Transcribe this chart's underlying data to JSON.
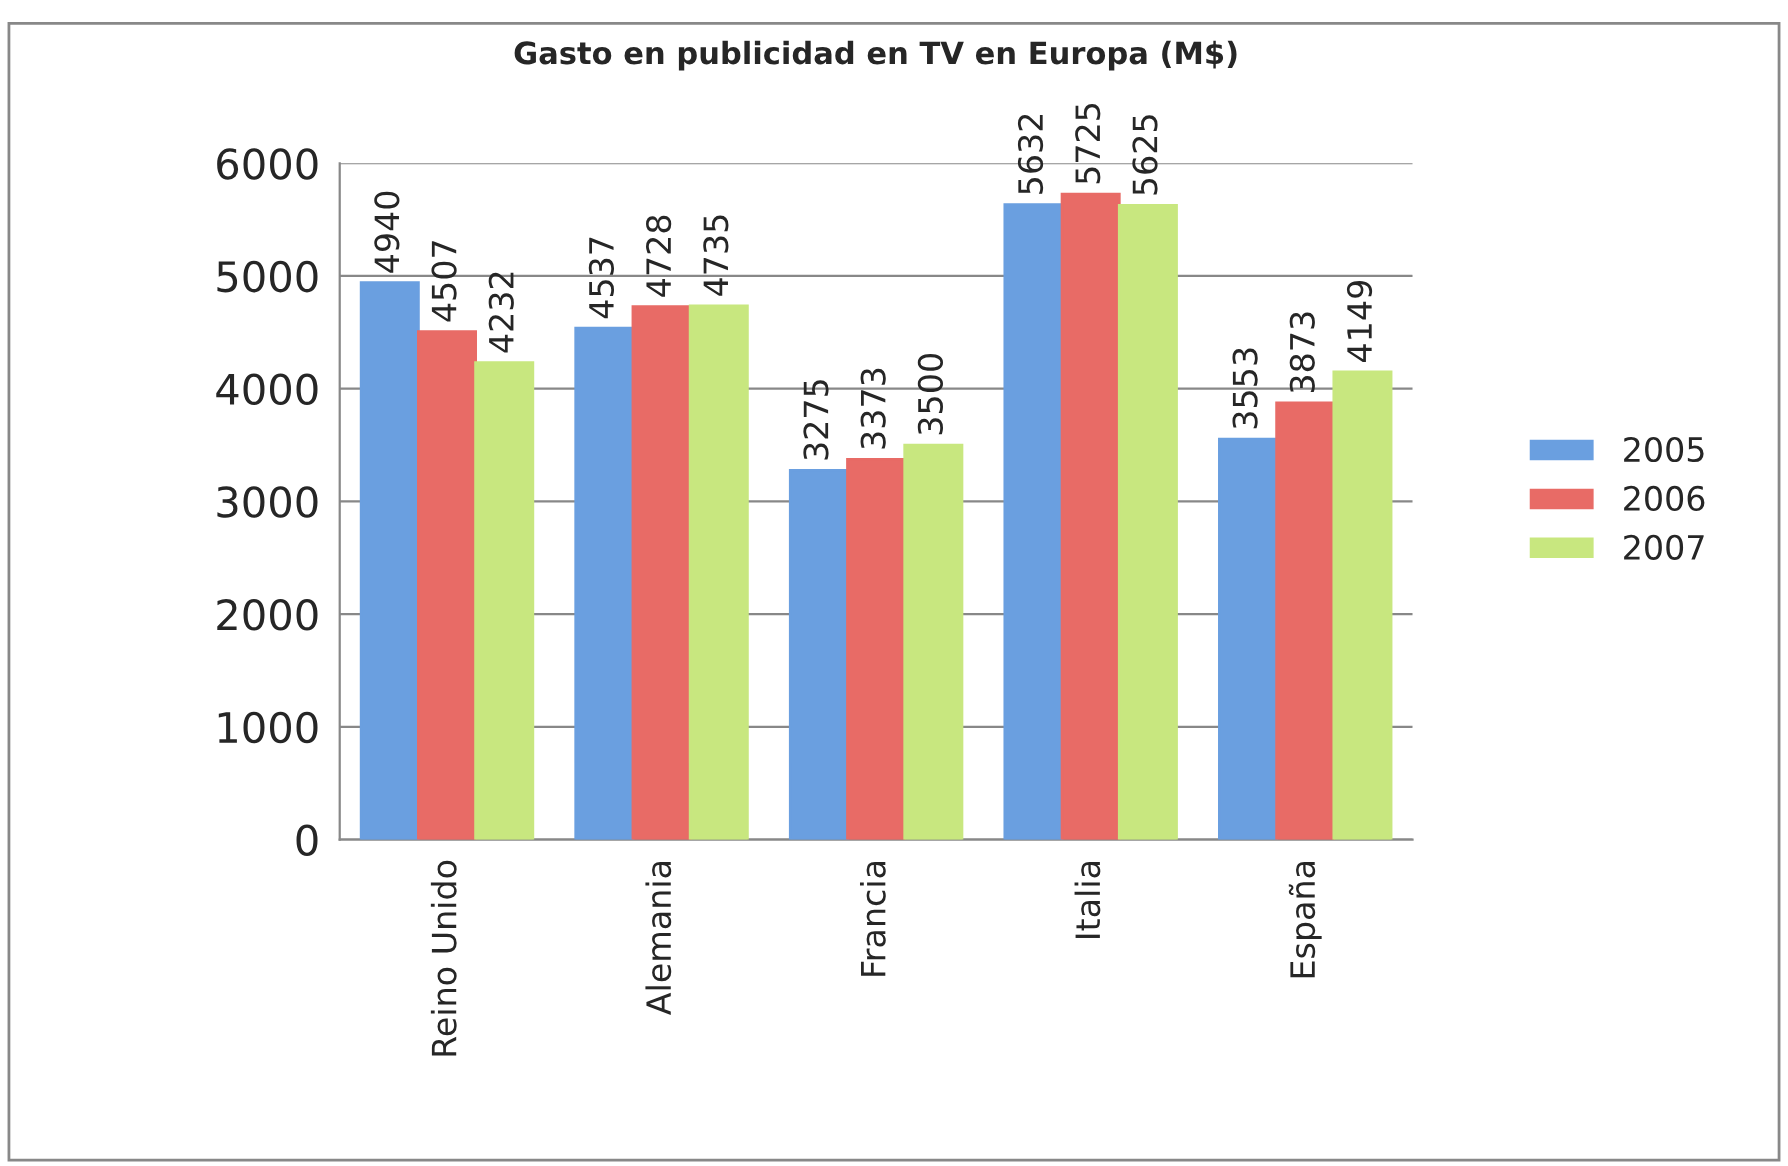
{
  "chart_data": {
    "type": "bar",
    "title": "Gasto en publicidad en TV en Europa (M$)",
    "categories": [
      "Reino Unido",
      "Alemania",
      "Francia",
      "Italia",
      "España"
    ],
    "series": [
      {
        "name": "2005",
        "color": "#6a9fe0",
        "values": [
          4940,
          4537,
          3275,
          5632,
          3553
        ]
      },
      {
        "name": "2006",
        "color": "#e86b66",
        "values": [
          4507,
          4728,
          3373,
          5725,
          3873
        ]
      },
      {
        "name": "2007",
        "color": "#c8e77f",
        "values": [
          4232,
          4735,
          3500,
          5625,
          4149
        ]
      }
    ],
    "ylim": [
      0,
      6000
    ],
    "yticks": [
      0,
      1000,
      2000,
      3000,
      4000,
      5000,
      6000
    ],
    "grid": "y",
    "legend": "right",
    "data_labels": true
  }
}
